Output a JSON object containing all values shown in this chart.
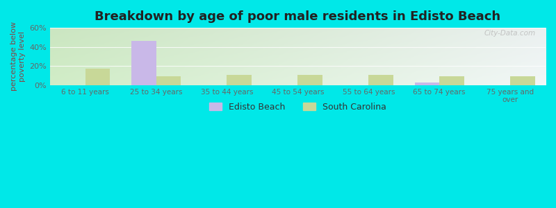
{
  "title": "Breakdown by age of poor male residents in Edisto Beach",
  "categories": [
    "6 to 11 years",
    "25 to 34 years",
    "35 to 44 years",
    "45 to 54 years",
    "55 to 64 years",
    "65 to 74 years",
    "75 years and\nover"
  ],
  "edisto_beach": [
    0,
    46,
    0,
    0,
    0,
    2.5,
    0
  ],
  "south_carolina": [
    17,
    9,
    10.5,
    10.5,
    11,
    9,
    9
  ],
  "edisto_color": "#c9b8e8",
  "sc_color": "#c8d898",
  "ylabel": "percentage below\npoverty level",
  "ylim": [
    0,
    60
  ],
  "yticks": [
    0,
    20,
    40,
    60
  ],
  "ytick_labels": [
    "0%",
    "20%",
    "40%",
    "60%"
  ],
  "outer_bg": "#00e8e8",
  "watermark": "City-Data.com",
  "bar_width": 0.35,
  "title_fontsize": 13,
  "ylabel_color": "#884444",
  "tick_color": "#666666"
}
